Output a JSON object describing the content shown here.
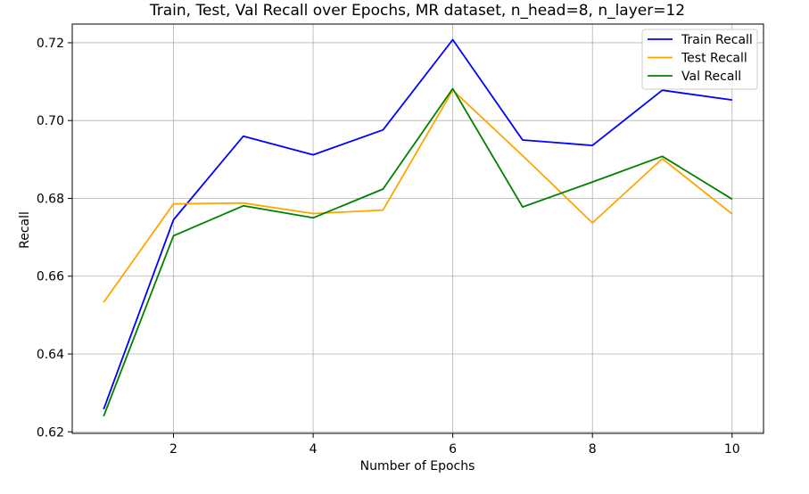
{
  "chart_data": {
    "type": "line",
    "title": "Train, Test, Val Recall over Epochs, MR dataset, n_head=8, n_layer=12",
    "xlabel": "Number of Epochs",
    "ylabel": "Recall",
    "x": [
      1,
      2,
      3,
      4,
      5,
      6,
      7,
      8,
      9,
      10
    ],
    "xlim": [
      0.55,
      10.45
    ],
    "ylim": [
      0.6196,
      0.7248
    ],
    "xticks": [
      2,
      4,
      6,
      8,
      10
    ],
    "xtick_labels": [
      "2",
      "4",
      "6",
      "8",
      "10"
    ],
    "yticks": [
      0.62,
      0.64,
      0.66,
      0.68,
      0.7,
      0.72
    ],
    "ytick_labels": [
      "0.62",
      "0.64",
      "0.66",
      "0.68",
      "0.70",
      "0.72"
    ],
    "grid": true,
    "legend_position": "top-right",
    "series": [
      {
        "name": "Train Recall",
        "color": "#0000ff",
        "values": [
          0.6258,
          0.6745,
          0.696,
          0.6912,
          0.6976,
          0.7208,
          0.695,
          0.6936,
          0.7078,
          0.7053
        ]
      },
      {
        "name": "Test Recall",
        "color": "#ffa500",
        "values": [
          0.6533,
          0.6786,
          0.6788,
          0.6761,
          0.677,
          0.7078,
          0.691,
          0.6737,
          0.6902,
          0.676
        ]
      },
      {
        "name": "Val Recall",
        "color": "#008000",
        "values": [
          0.624,
          0.6704,
          0.6781,
          0.675,
          0.6824,
          0.7082,
          0.6778,
          0.6842,
          0.6908,
          0.6798
        ]
      }
    ]
  }
}
